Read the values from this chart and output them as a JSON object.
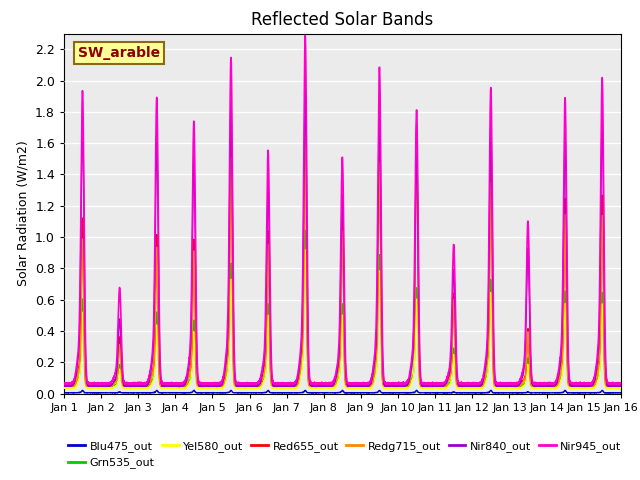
{
  "title": "Reflected Solar Bands",
  "ylabel": "Solar Radiation (W/m2)",
  "xlim": [
    0,
    15
  ],
  "ylim": [
    0,
    2.3
  ],
  "yticks": [
    0.0,
    0.2,
    0.4,
    0.6,
    0.8,
    1.0,
    1.2,
    1.4,
    1.6,
    1.8,
    2.0,
    2.2
  ],
  "xtick_labels": [
    "Jan 1",
    "Jan 2",
    "Jan 3",
    "Jan 4",
    "Jan 5",
    "Jan 6",
    "Jan 7",
    "Jan 8",
    "Jan 9",
    "Jan 10",
    "Jan 11",
    "Jan 12",
    "Jan 13",
    "Jan 14",
    "Jan 15",
    "Jan 16"
  ],
  "annotation_text": "SW_arable",
  "annotation_color": "#8B0000",
  "annotation_bg": "#FFFF99",
  "annotation_edge": "#8B6914",
  "bg_color": "#EBEBEB",
  "series": [
    {
      "name": "Blu475_out",
      "color": "#0000CC",
      "lw": 1.0
    },
    {
      "name": "Grn535_out",
      "color": "#00CC00",
      "lw": 1.0
    },
    {
      "name": "Yel580_out",
      "color": "#FFFF00",
      "lw": 1.0
    },
    {
      "name": "Red655_out",
      "color": "#FF0000",
      "lw": 1.0
    },
    {
      "name": "Redg715_out",
      "color": "#FF8800",
      "lw": 1.0
    },
    {
      "name": "Nir840_out",
      "color": "#9900CC",
      "lw": 1.0
    },
    {
      "name": "Nir945_out",
      "color": "#FF00CC",
      "lw": 1.2
    }
  ],
  "day_peaks_nir945": [
    1.82,
    0.64,
    1.78,
    1.64,
    2.02,
    1.46,
    2.15,
    1.42,
    1.96,
    1.7,
    0.9,
    1.84,
    1.04,
    1.78,
    1.9
  ],
  "day_peaks_nir840": [
    1.65,
    0.45,
    1.55,
    1.42,
    1.75,
    1.25,
    1.85,
    1.2,
    1.68,
    1.45,
    0.75,
    1.6,
    0.88,
    1.55,
    1.65
  ],
  "day_peaks_red655": [
    1.08,
    0.35,
    0.98,
    0.95,
    1.58,
    1.0,
    1.78,
    1.1,
    1.55,
    1.65,
    0.62,
    1.42,
    0.4,
    1.2,
    1.22
  ],
  "day_peaks_redg715": [
    0.95,
    0.3,
    0.9,
    0.88,
    1.45,
    0.92,
    1.65,
    1.0,
    1.42,
    1.52,
    0.58,
    1.3,
    0.38,
    1.1,
    1.1
  ],
  "day_peaks_grn535": [
    0.58,
    0.18,
    0.5,
    0.45,
    0.8,
    0.55,
    1.0,
    0.55,
    0.85,
    0.65,
    0.28,
    0.7,
    0.22,
    0.63,
    0.62
  ],
  "day_peaks_yel580": [
    0.5,
    0.15,
    0.42,
    0.38,
    0.7,
    0.48,
    0.88,
    0.48,
    0.75,
    0.58,
    0.24,
    0.62,
    0.18,
    0.55,
    0.55
  ],
  "day_peaks_blu475": [
    0.02,
    0.01,
    0.02,
    0.02,
    0.02,
    0.02,
    0.02,
    0.02,
    0.02,
    0.02,
    0.01,
    0.02,
    0.01,
    0.02,
    0.02
  ],
  "baseline_nir945": 0.065,
  "baseline_nir840": 0.05,
  "baseline_red655": 0.055,
  "baseline_redg715": 0.05,
  "baseline_grn535": 0.04,
  "baseline_yel580": 0.035,
  "baseline_blu475": 0.005,
  "n_points_per_day": 288
}
